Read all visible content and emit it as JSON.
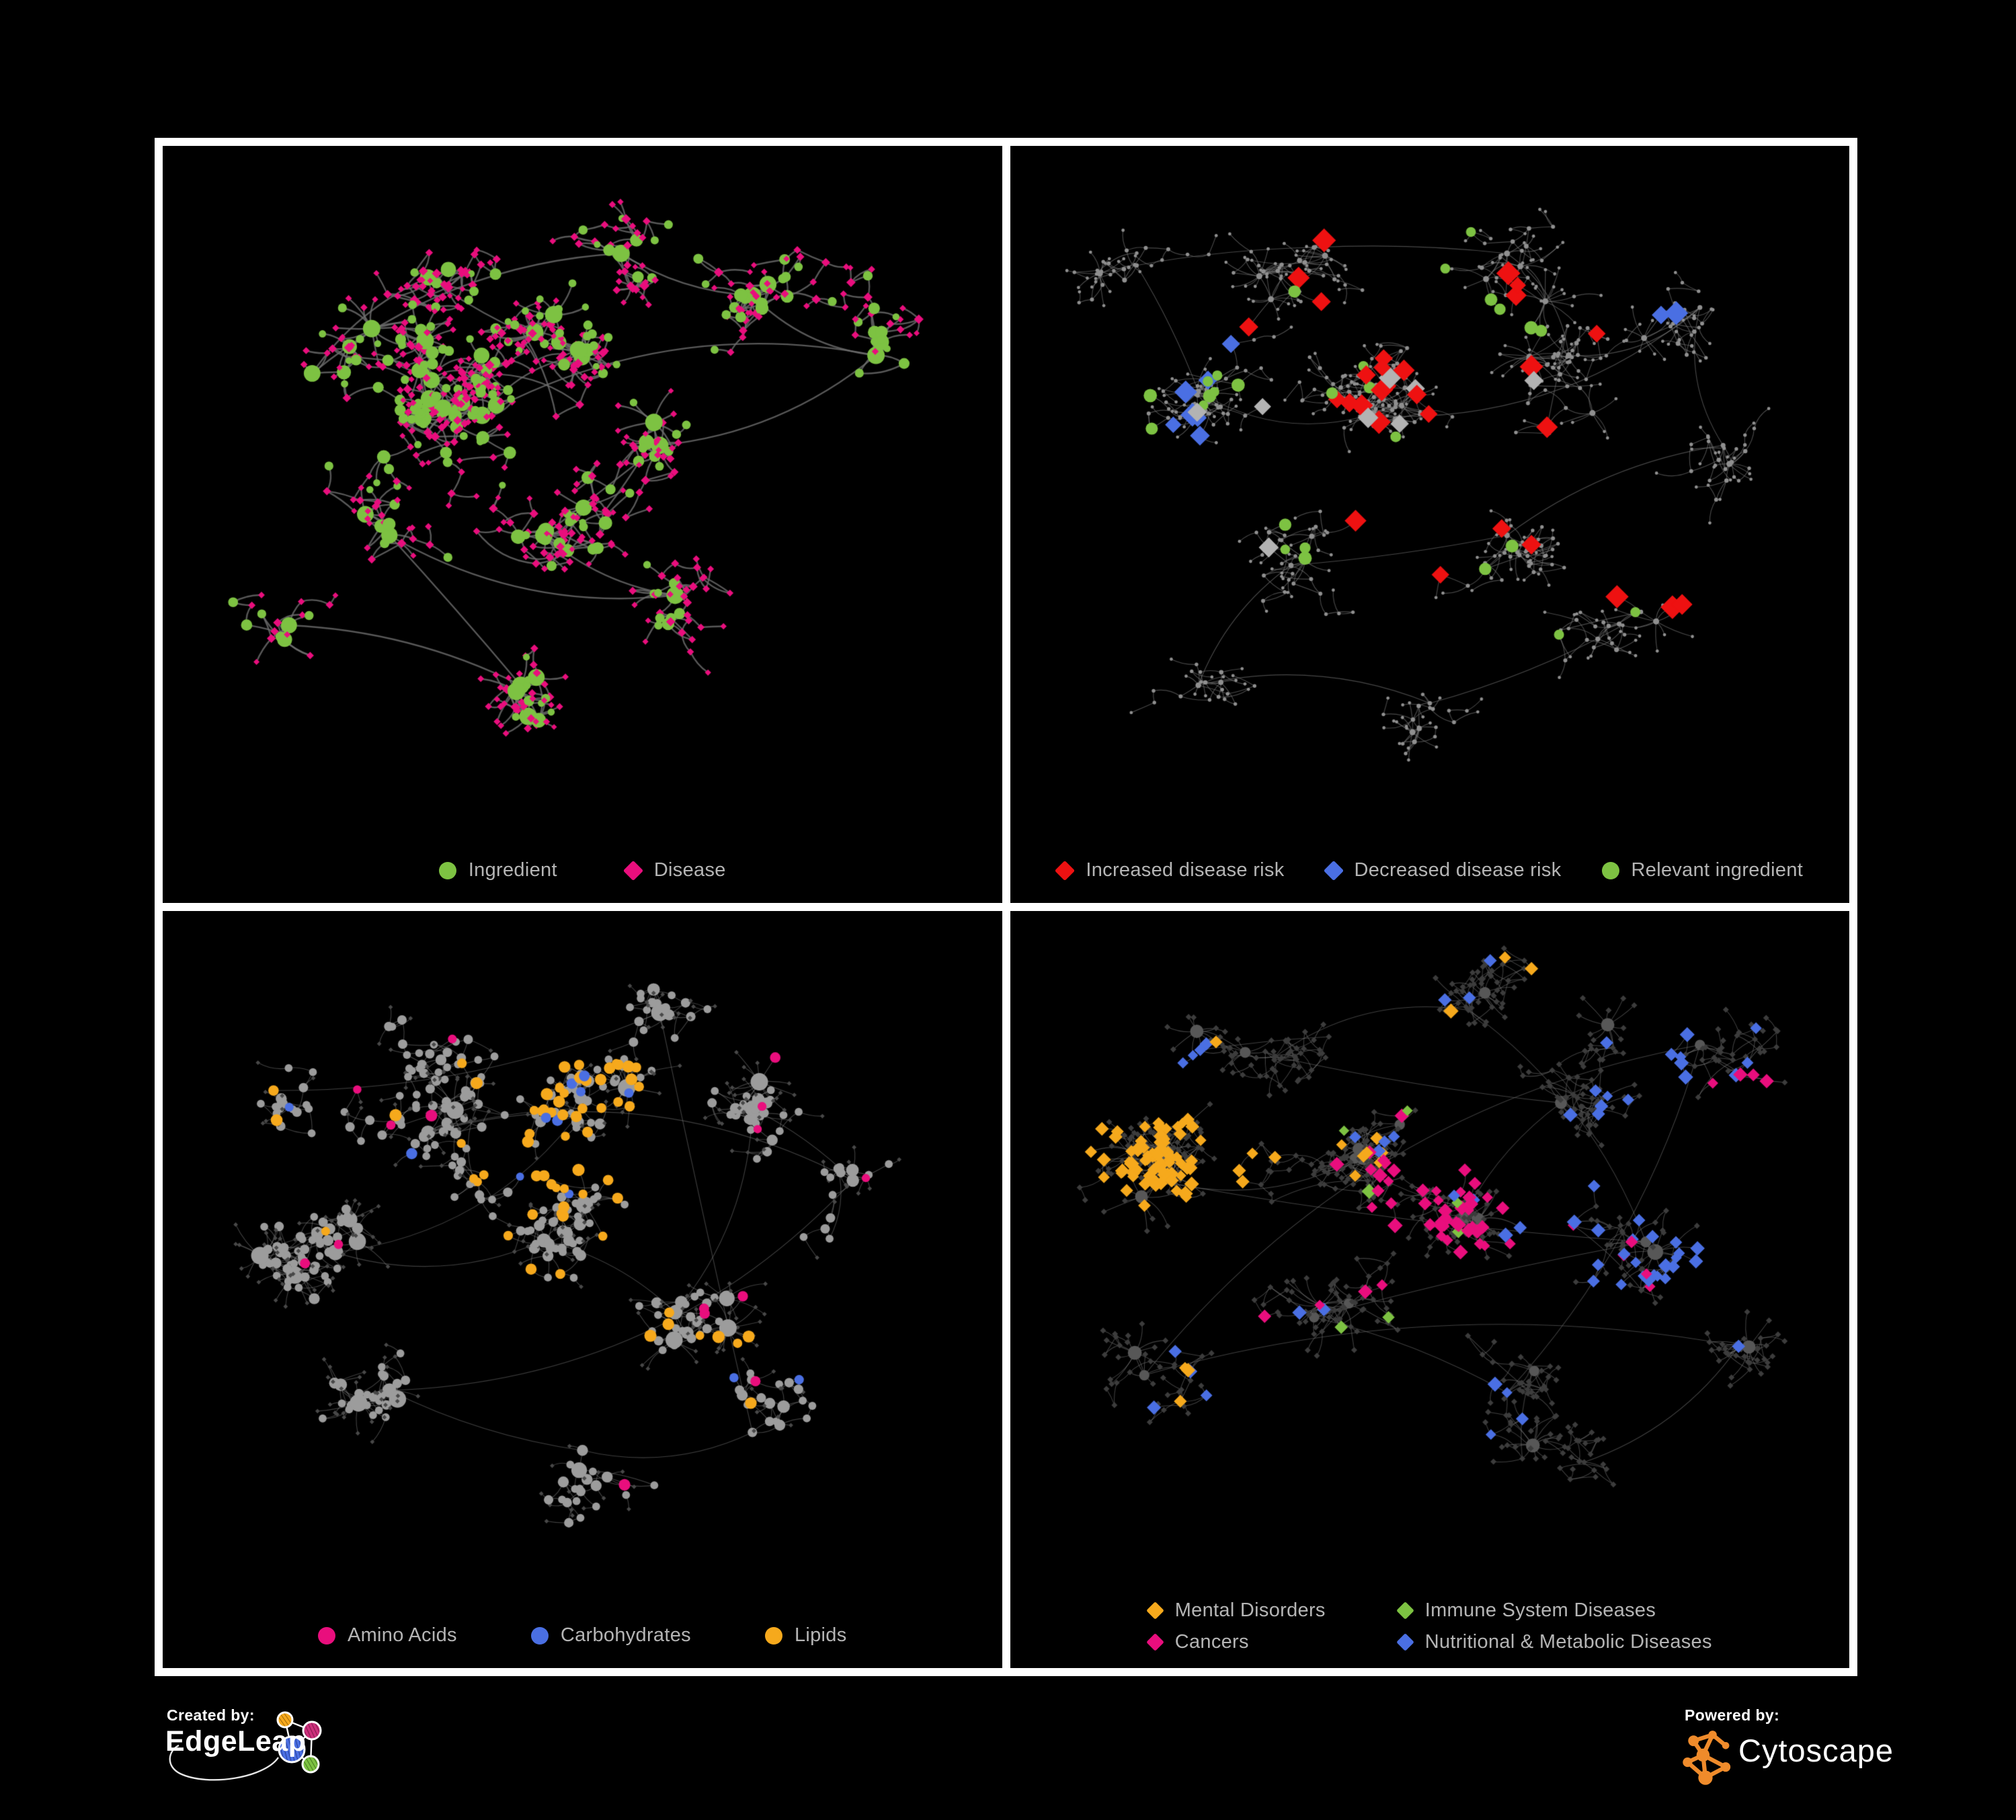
{
  "page": {
    "background": "#000000",
    "frame_color": "#ffffff"
  },
  "footer": {
    "created_by": {
      "label": "Created by:",
      "brand": "EdgeLeap"
    },
    "powered_by": {
      "label": "Powered by:",
      "brand": "Cytoscape"
    },
    "edgeleap_palette": [
      "#f6a91c",
      "#cc2f7b",
      "#4a6fe3",
      "#7dc242"
    ],
    "cytoscape_color": "#ef8b2b"
  },
  "panels": [
    {
      "name": "ingredient-disease",
      "legend": [
        {
          "label": "Ingredient",
          "shape": "circle",
          "color": "#7dc242"
        },
        {
          "label": "Disease",
          "shape": "diamond",
          "color": "#e90e7d"
        }
      ],
      "network": {
        "seed": 11,
        "legend_space": 170,
        "edge": {
          "color": "#6e6e6e",
          "alpha": 0.8,
          "width": 2.4
        },
        "base": {
          "type": "bipartite",
          "circle_color": "#7dc242",
          "diamond_color": "#e90e7d",
          "circle_ratio": 0.28
        },
        "clusters": [
          [
            0.37,
            0.4,
            150,
            26
          ],
          [
            0.5,
            0.3,
            70,
            24
          ],
          [
            0.3,
            0.17,
            50,
            24
          ],
          [
            0.15,
            0.33,
            35,
            26
          ],
          [
            0.55,
            0.13,
            40,
            24
          ],
          [
            0.72,
            0.2,
            55,
            26
          ],
          [
            0.88,
            0.3,
            30,
            24
          ],
          [
            0.6,
            0.45,
            55,
            26
          ],
          [
            0.45,
            0.6,
            60,
            26
          ],
          [
            0.62,
            0.7,
            40,
            26
          ],
          [
            0.25,
            0.6,
            40,
            28
          ],
          [
            0.42,
            0.85,
            40,
            22
          ],
          [
            0.12,
            0.75,
            20,
            26
          ]
        ],
        "bursts": 10,
        "highlights": []
      }
    },
    {
      "name": "disease-risk",
      "legend": [
        {
          "label": "Increased disease risk",
          "shape": "diamond",
          "color": "#ee1111"
        },
        {
          "label": "Decreased disease risk",
          "shape": "diamond",
          "color": "#4a6fe3"
        },
        {
          "label": "Relevant ingredient",
          "shape": "circle",
          "color": "#7dc242"
        }
      ],
      "network": {
        "seed": 42,
        "legend_space": 170,
        "edge": {
          "color": "#787878",
          "alpha": 0.6,
          "width": 1.15
        },
        "base": {
          "type": "dots",
          "dot_color": "#8f8f8f"
        },
        "clusters": [
          [
            0.42,
            0.4,
            150,
            24
          ],
          [
            0.2,
            0.36,
            80,
            26
          ],
          [
            0.12,
            0.15,
            35,
            24
          ],
          [
            0.35,
            0.12,
            45,
            24
          ],
          [
            0.6,
            0.13,
            45,
            24
          ],
          [
            0.68,
            0.3,
            60,
            26
          ],
          [
            0.85,
            0.22,
            35,
            26
          ],
          [
            0.88,
            0.45,
            40,
            26
          ],
          [
            0.6,
            0.6,
            60,
            26
          ],
          [
            0.32,
            0.65,
            55,
            26
          ],
          [
            0.2,
            0.85,
            30,
            24
          ],
          [
            0.5,
            0.88,
            30,
            24
          ],
          [
            0.75,
            0.75,
            35,
            26
          ]
        ],
        "bursts": 14,
        "highlights": [
          {
            "shape": "diamond",
            "color": "#ee1111",
            "size": 15,
            "regions": [
              [
                0.45,
                0.36,
                0.2,
                20
              ],
              [
                0.63,
                0.3,
                0.1,
                4
              ],
              [
                0.8,
                0.64,
                0.07,
                3
              ],
              [
                0.55,
                0.55,
                0.12,
                3
              ]
            ]
          },
          {
            "shape": "diamond",
            "color": "#4a6fe3",
            "size": 15,
            "regions": [
              [
                0.2,
                0.38,
                0.1,
                7
              ],
              [
                0.86,
                0.22,
                0.06,
                2
              ]
            ]
          },
          {
            "shape": "diamond",
            "color": "#b3b3b3",
            "size": 14,
            "regions": [
              [
                0.3,
                0.42,
                0.16,
                5
              ],
              [
                0.55,
                0.44,
                0.12,
                3
              ]
            ]
          },
          {
            "shape": "circle",
            "color": "#7dc242",
            "size": 8,
            "regions": [
              [
                0.4,
                0.38,
                0.26,
                20
              ],
              [
                0.15,
                0.3,
                0.1,
                4
              ],
              [
                0.62,
                0.7,
                0.15,
                3
              ]
            ]
          }
        ]
      }
    },
    {
      "name": "nutrient-classes",
      "legend": [
        {
          "label": "Amino Acids",
          "shape": "circle",
          "color": "#e90e7d"
        },
        {
          "label": "Carbohydrates",
          "shape": "circle",
          "color": "#4a6fe3"
        },
        {
          "label": "Lipids",
          "shape": "circle",
          "color": "#f6a91c"
        }
      ],
      "network": {
        "seed": 73,
        "legend_space": 170,
        "edge": {
          "color": "#8a8a8a",
          "alpha": 0.45,
          "width": 1.15
        },
        "base": {
          "type": "gray-circles",
          "circle_color": "#9c9c9c",
          "leaf_color": "#484848"
        },
        "clusters": [
          [
            0.3,
            0.32,
            130,
            24
          ],
          [
            0.5,
            0.28,
            90,
            22
          ],
          [
            0.18,
            0.52,
            80,
            24
          ],
          [
            0.45,
            0.5,
            80,
            24
          ],
          [
            0.62,
            0.62,
            50,
            24
          ],
          [
            0.72,
            0.28,
            50,
            26
          ],
          [
            0.85,
            0.4,
            25,
            24
          ],
          [
            0.25,
            0.75,
            45,
            26
          ],
          [
            0.5,
            0.85,
            35,
            22
          ],
          [
            0.72,
            0.82,
            35,
            24
          ],
          [
            0.6,
            0.12,
            35,
            24
          ],
          [
            0.1,
            0.25,
            25,
            26
          ]
        ],
        "bursts": 12,
        "highlights": [
          {
            "shape": "circle",
            "color": "#f6a91c",
            "size": 7.5,
            "regions": [
              [
                0.5,
                0.3,
                0.1,
                28
              ],
              [
                0.46,
                0.42,
                0.1,
                16
              ],
              [
                0.55,
                0.6,
                0.25,
                10
              ],
              [
                0.3,
                0.2,
                0.25,
                8
              ],
              [
                0.7,
                0.7,
                0.2,
                4
              ]
            ]
          },
          {
            "shape": "circle",
            "color": "#4a6fe3",
            "size": 7,
            "regions": [
              [
                0.48,
                0.3,
                0.09,
                8
              ],
              [
                0.2,
                0.3,
                0.12,
                2
              ],
              [
                0.72,
                0.65,
                0.12,
                2
              ]
            ]
          },
          {
            "shape": "circle",
            "color": "#e90e7d",
            "size": 7,
            "regions": [
              [
                0.15,
                0.45,
                0.2,
                4
              ],
              [
                0.55,
                0.75,
                0.25,
                5
              ],
              [
                0.75,
                0.3,
                0.2,
                3
              ],
              [
                0.35,
                0.1,
                0.15,
                2
              ],
              [
                0.85,
                0.15,
                0.1,
                1
              ]
            ]
          }
        ]
      }
    },
    {
      "name": "disease-classes",
      "legend": [
        {
          "label": "Mental Disorders",
          "shape": "diamond",
          "color": "#f6a91c"
        },
        {
          "label": "Immune System Diseases",
          "shape": "diamond",
          "color": "#7dc242"
        },
        {
          "label": "Cancers",
          "shape": "diamond",
          "color": "#e90e7d"
        },
        {
          "label": "Nutritional & Metabolic Diseases",
          "shape": "diamond",
          "color": "#4a6fe3"
        }
      ],
      "network": {
        "seed": 104,
        "legend_space": 200,
        "edge": {
          "color": "#828282",
          "alpha": 0.5,
          "width": 1.05
        },
        "base": {
          "type": "dark-diamonds",
          "diamond_color": "#3c3c3c",
          "hub_color": "#575757"
        },
        "clusters": [
          [
            0.17,
            0.42,
            130,
            22
          ],
          [
            0.4,
            0.38,
            120,
            22
          ],
          [
            0.55,
            0.46,
            90,
            22
          ],
          [
            0.67,
            0.28,
            70,
            24
          ],
          [
            0.3,
            0.2,
            60,
            24
          ],
          [
            0.55,
            0.12,
            50,
            24
          ],
          [
            0.78,
            0.52,
            60,
            24
          ],
          [
            0.35,
            0.65,
            60,
            24
          ],
          [
            0.6,
            0.78,
            50,
            24
          ],
          [
            0.85,
            0.18,
            45,
            24
          ],
          [
            0.13,
            0.75,
            35,
            24
          ],
          [
            0.9,
            0.7,
            25,
            24
          ],
          [
            0.7,
            0.9,
            25,
            22
          ]
        ],
        "bursts": 16,
        "highlights": [
          {
            "shape": "diamond",
            "color": "#f6a91c",
            "size": 9.5,
            "regions": [
              [
                0.16,
                0.42,
                0.12,
                70
              ],
              [
                0.28,
                0.3,
                0.18,
                10
              ],
              [
                0.45,
                0.15,
                0.2,
                5
              ],
              [
                0.3,
                0.88,
                0.15,
                3
              ]
            ]
          },
          {
            "shape": "diamond",
            "color": "#e90e7d",
            "size": 9.5,
            "regions": [
              [
                0.55,
                0.48,
                0.13,
                40
              ],
              [
                0.48,
                0.35,
                0.1,
                8
              ],
              [
                0.7,
                0.6,
                0.1,
                5
              ],
              [
                0.9,
                0.35,
                0.08,
                4
              ],
              [
                0.35,
                0.55,
                0.1,
                3
              ]
            ]
          },
          {
            "shape": "diamond",
            "color": "#4a6fe3",
            "size": 9.5,
            "regions": [
              [
                0.78,
                0.5,
                0.18,
                30
              ],
              [
                0.6,
                0.1,
                0.25,
                12
              ],
              [
                0.88,
                0.25,
                0.1,
                8
              ],
              [
                0.25,
                0.72,
                0.12,
                6
              ],
              [
                0.5,
                0.9,
                0.15,
                4
              ],
              [
                0.12,
                0.15,
                0.1,
                4
              ]
            ]
          },
          {
            "shape": "diamond",
            "color": "#7dc242",
            "size": 9.5,
            "regions": [
              [
                0.5,
                0.35,
                0.15,
                5
              ],
              [
                0.45,
                0.7,
                0.1,
                2
              ],
              [
                0.55,
                0.55,
                0.08,
                1
              ]
            ]
          }
        ]
      }
    }
  ]
}
